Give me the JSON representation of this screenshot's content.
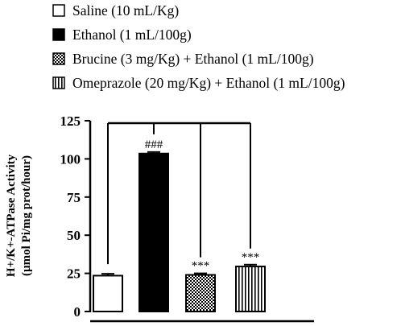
{
  "chart_data": {
    "type": "bar",
    "categories": [
      "Saline (10 mL/Kg)",
      "Ethanol (1 mL/100g)",
      "Brucine (3 mg/Kg) + Ethanol (1 mL/100g)",
      "Omeprazole (20 mg/Kg) + Ethanol (1 mL/100g)"
    ],
    "values": [
      23.5,
      103.5,
      24.0,
      29.5
    ],
    "errors": [
      1.2,
      1.0,
      1.0,
      1.2
    ],
    "annotations": [
      "",
      "###",
      "***",
      "***"
    ],
    "ylabel_line1": "H+/K+-ATPase Activity",
    "ylabel_line2": "(µmol Pi/mg prot/hour)",
    "ylim": [
      0,
      125
    ],
    "yticks": [
      0,
      25,
      50,
      75,
      100,
      125
    ],
    "grid": false,
    "legend_position": "top",
    "comparison_bracket": true,
    "series": [
      {
        "name": "Saline (10 mL/Kg)",
        "fill": "white",
        "color": "#ffffff"
      },
      {
        "name": "Ethanol (1 mL/100g)",
        "fill": "solid",
        "color": "#000000"
      },
      {
        "name": "Brucine (3 mg/Kg) + Ethanol (1 mL/100g)",
        "fill": "checkerboard",
        "color": "#000000"
      },
      {
        "name": "Omeprazole (20 mg/Kg) + Ethanol (1 mL/100g)",
        "fill": "vertical-stripes",
        "color": "#000000"
      }
    ]
  }
}
